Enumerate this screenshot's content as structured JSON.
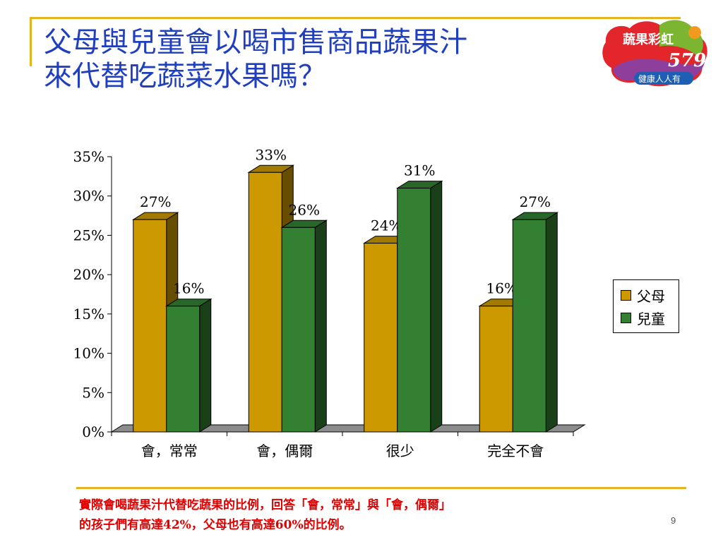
{
  "slide": {
    "title_line1": "父母與兒童會以喝市售商品蔬果汁",
    "title_line2": "來代替吃蔬菜水果嗎？",
    "note_line1": "實際會喝蔬果汁代替吃蔬果的比例，回答「會，常常」與「會，偶爾」",
    "note_line2": "的孩子們有高達42%，父母也有高達60%的比例。",
    "page_number": "9"
  },
  "logo": {
    "top_text": "蔬果彩虹",
    "number": "579",
    "bottom_text": "健康人人有"
  },
  "colors": {
    "accent_rule": "#e6b422",
    "title": "#1f3fbf",
    "note": "#e00000",
    "parents": "#cc9900",
    "children": "#338033"
  },
  "chart_data": {
    "type": "bar",
    "style": "3d-clustered",
    "categories": [
      "會，常常",
      "會，偶爾",
      "很少",
      "完全不會"
    ],
    "series": [
      {
        "name": "父母",
        "values": [
          27,
          33,
          24,
          16
        ],
        "labels": [
          "27%",
          "33%",
          "24%",
          "16%"
        ]
      },
      {
        "name": "兒童",
        "values": [
          16,
          26,
          31,
          27
        ],
        "labels": [
          "16%",
          "26%",
          "31%",
          "27%"
        ]
      }
    ],
    "ylim": [
      0,
      35
    ],
    "yticks": [
      0,
      5,
      10,
      15,
      20,
      25,
      30,
      35
    ],
    "ytick_labels": [
      "0%",
      "5%",
      "10%",
      "15%",
      "20%",
      "25%",
      "30%",
      "35%"
    ],
    "legend_position": "right",
    "grid": false
  }
}
